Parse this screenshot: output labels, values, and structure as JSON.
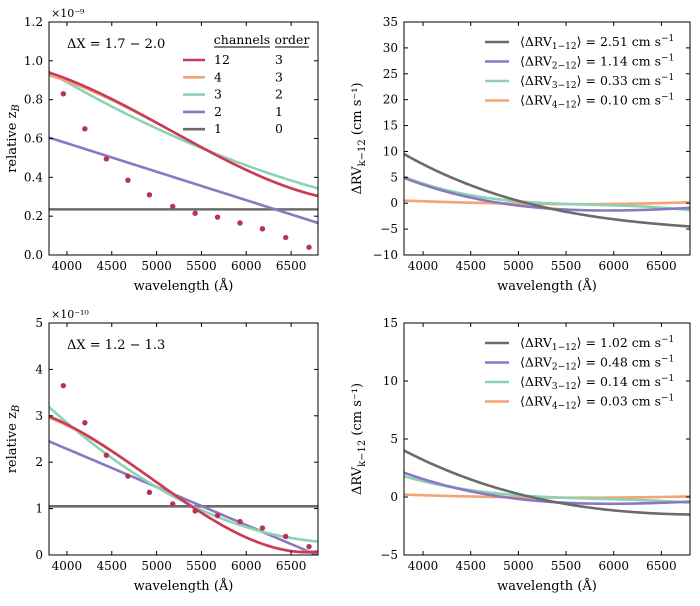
{
  "chart_data": [
    {
      "type": "line",
      "panel": "top-left",
      "annotation": "ΔX = 1.7 − 2.0",
      "xlabel": "wavelength (Å)",
      "ylabel": "relative z_B",
      "xlim": [
        3800,
        6800
      ],
      "ylim": [
        0.0,
        1.2
      ],
      "multiplier": "×10⁻⁹",
      "xticks": [
        "4000",
        "4500",
        "5000",
        "5500",
        "6000",
        "6500"
      ],
      "yticks": [
        "0.0",
        "0.2",
        "0.4",
        "0.6",
        "0.8",
        "1.0",
        "1.2"
      ],
      "legend": {
        "position": "top-right",
        "headers": [
          "channels",
          "order"
        ]
      },
      "series": [
        {
          "channels": "12",
          "order": "3",
          "color": "#c83c5a",
          "poly": [
            0.605,
            -0.38,
            0.017,
            0.062
          ]
        },
        {
          "channels": "4",
          "order": "3",
          "color": "#f4a474",
          "poly": [
            0.605,
            -0.375,
            0.01,
            0.064
          ]
        },
        {
          "channels": "3",
          "order": "2",
          "color": "#8ed2b6",
          "poly": [
            0.59,
            -0.3,
            0.053,
            0.0
          ]
        },
        {
          "channels": "2",
          "order": "1",
          "color": "#8a78c0",
          "poly": [
            0.385,
            -0.22,
            0.0,
            0.0
          ]
        },
        {
          "channels": "1",
          "order": "0",
          "color": "#6b6b6b",
          "poly": [
            0.235,
            0.0,
            0.0,
            0.0
          ]
        }
      ],
      "points": {
        "color": "#b83350",
        "x": [
          3960,
          4200,
          4440,
          4680,
          4920,
          5180,
          5430,
          5680,
          5930,
          6180,
          6440,
          6700
        ],
        "y": [
          0.83,
          0.65,
          0.495,
          0.385,
          0.31,
          0.25,
          0.215,
          0.195,
          0.165,
          0.135,
          0.09,
          0.04
        ]
      }
    },
    {
      "type": "line",
      "panel": "top-right",
      "xlabel": "wavelength (Å)",
      "ylabel": "ΔRV_{k−12} (cm s⁻¹)",
      "xlim": [
        3800,
        6800
      ],
      "ylim": [
        -10,
        35
      ],
      "xticks": [
        "4000",
        "4500",
        "5000",
        "5500",
        "6000",
        "6500"
      ],
      "yticks": [
        "−10",
        "−5",
        "0",
        "5",
        "10",
        "15",
        "20",
        "25",
        "30",
        "35"
      ],
      "legend": {
        "position": "top-right"
      },
      "series": [
        {
          "pair": "1−12",
          "value": "2.51",
          "color": "#6b6b6b",
          "poly": [
            -0.9,
            -6.1,
            3.4,
            -0.9
          ]
        },
        {
          "pair": "2−12",
          "value": "1.14",
          "color": "#8a78c0",
          "poly": [
            -1.0,
            -2.08,
            3.0,
            -0.82
          ]
        },
        {
          "pair": "3−12",
          "value": "0.33",
          "color": "#8ed2b6",
          "poly": [
            0.0,
            -1.35,
            1.87,
            -1.88
          ]
        },
        {
          "pair": "4−12",
          "value": "0.10",
          "color": "#f4a474",
          "poly": [
            -0.15,
            -0.23,
            0.5,
            0.08
          ]
        }
      ]
    },
    {
      "type": "line",
      "panel": "bottom-left",
      "annotation": "ΔX = 1.2 − 1.3",
      "xlabel": "wavelength (Å)",
      "ylabel": "relative z_B",
      "xlim": [
        3800,
        6800
      ],
      "ylim": [
        0,
        5
      ],
      "multiplier": "×10⁻¹⁰",
      "xticks": [
        "4000",
        "4500",
        "5000",
        "5500",
        "6000",
        "6500"
      ],
      "yticks": [
        "0",
        "1",
        "2",
        "3",
        "4",
        "5"
      ],
      "series": [
        {
          "order": "3",
          "color": "#c83c5a",
          "poly": [
            1.165,
            -1.97,
            0.365,
            0.51
          ]
        },
        {
          "order": "3",
          "color": "#f4a474",
          "poly": [
            1.165,
            -1.96,
            0.355,
            0.52
          ]
        },
        {
          "order": "2",
          "color": "#8ed2b6",
          "poly": [
            1.15,
            -1.45,
            0.59,
            0.0
          ]
        },
        {
          "order": "1",
          "color": "#8a78c0",
          "poly": [
            1.22,
            -1.23,
            0.0,
            0.0
          ]
        },
        {
          "order": "0",
          "color": "#6b6b6b",
          "poly": [
            1.05,
            0.0,
            0.0,
            0.0
          ]
        }
      ],
      "points": {
        "color": "#b83350",
        "x": [
          3960,
          4200,
          4440,
          4680,
          4920,
          5180,
          5430,
          5680,
          5930,
          6180,
          6440,
          6700
        ],
        "y": [
          3.65,
          2.85,
          2.15,
          1.7,
          1.35,
          1.1,
          0.95,
          0.85,
          0.72,
          0.58,
          0.4,
          0.18
        ]
      }
    },
    {
      "type": "line",
      "panel": "bottom-right",
      "xlabel": "wavelength (Å)",
      "ylabel": "ΔRV_{k−12} (cm s⁻¹)",
      "xlim": [
        3800,
        6800
      ],
      "ylim": [
        -5,
        15
      ],
      "xticks": [
        "4000",
        "4500",
        "5000",
        "5500",
        "6000",
        "6500"
      ],
      "yticks": [
        "−5",
        "0",
        "5",
        "10",
        "15"
      ],
      "legend": {
        "position": "top-right"
      },
      "series": [
        {
          "pair": "1−12",
          "value": "1.02",
          "color": "#6b6b6b",
          "poly": [
            -0.3,
            -2.5,
            1.55,
            -0.26
          ]
        },
        {
          "pair": "2−12",
          "value": "0.48",
          "color": "#8a78c0",
          "poly": [
            -0.4,
            -0.9,
            1.25,
            -0.35
          ]
        },
        {
          "pair": "3−12",
          "value": "0.14",
          "color": "#8ed2b6",
          "poly": [
            0.0,
            -0.6,
            0.65,
            -0.54
          ]
        },
        {
          "pair": "4−12",
          "value": "0.03",
          "color": "#f4a474",
          "poly": [
            -0.05,
            -0.08,
            0.18,
            0.0
          ]
        }
      ]
    }
  ]
}
